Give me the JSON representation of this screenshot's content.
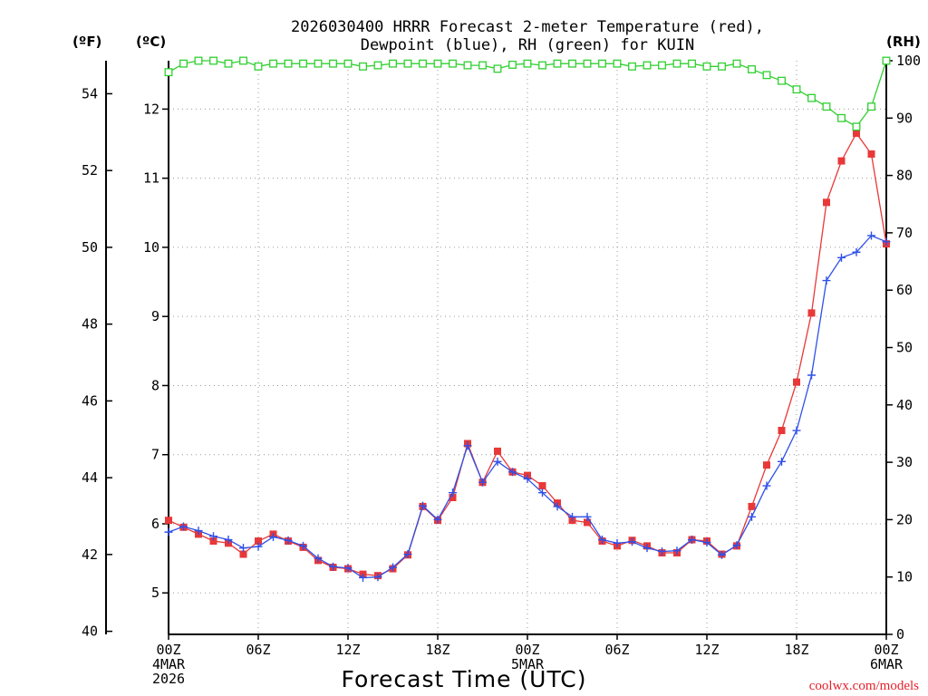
{
  "chart_data": {
    "type": "line",
    "title": [
      "2026030400 HRRR Forecast 2-meter Temperature (red),",
      "Dewpoint (blue), RH (green) for KUIN"
    ],
    "xlabel": "Forecast Time (UTC)",
    "credit": "coolwx.com/models",
    "units": {
      "fahrenheit": "(ºF)",
      "celsius": "(ºC)",
      "rh": "(RH)"
    },
    "x_hours": [
      0,
      1,
      2,
      3,
      4,
      5,
      6,
      7,
      8,
      9,
      10,
      11,
      12,
      13,
      14,
      15,
      16,
      17,
      18,
      19,
      20,
      21,
      22,
      23,
      24,
      25,
      26,
      27,
      28,
      29,
      30,
      31,
      32,
      33,
      34,
      35,
      36,
      37,
      38,
      39,
      40,
      41,
      42,
      43,
      44,
      45,
      46,
      47,
      48
    ],
    "x_ticks": [
      {
        "hour": 0,
        "lines": [
          "00Z",
          "4MAR",
          "2026"
        ]
      },
      {
        "hour": 6,
        "lines": [
          "06Z"
        ]
      },
      {
        "hour": 12,
        "lines": [
          "12Z"
        ]
      },
      {
        "hour": 18,
        "lines": [
          "18Z"
        ]
      },
      {
        "hour": 24,
        "lines": [
          "00Z",
          "5MAR"
        ]
      },
      {
        "hour": 30,
        "lines": [
          "06Z"
        ]
      },
      {
        "hour": 36,
        "lines": [
          "12Z"
        ]
      },
      {
        "hour": 42,
        "lines": [
          "18Z"
        ]
      },
      {
        "hour": 48,
        "lines": [
          "00Z",
          "6MAR"
        ]
      }
    ],
    "xlim": [
      0,
      48
    ],
    "celsius_ticks": [
      5,
      6,
      7,
      8,
      9,
      10,
      11,
      12
    ],
    "fahrenheit_ticks": [
      40,
      42,
      44,
      46,
      48,
      50,
      52,
      54
    ],
    "rh_ticks": [
      0,
      10,
      20,
      30,
      40,
      50,
      60,
      70,
      80,
      90,
      100
    ],
    "ylim_celsius": [
      4.4,
      12.7
    ],
    "ylim_rh": [
      0,
      100
    ],
    "grid": true,
    "series": [
      {
        "name": "Temperature",
        "axis": "celsius",
        "color": "#e83838",
        "marker": "filled-square",
        "values": [
          6.05,
          5.95,
          5.85,
          5.75,
          5.72,
          5.56,
          5.75,
          5.85,
          5.75,
          5.66,
          5.47,
          5.37,
          5.35,
          5.27,
          5.25,
          5.35,
          5.55,
          6.25,
          6.05,
          6.38,
          7.16,
          6.6,
          7.05,
          6.75,
          6.7,
          6.55,
          6.3,
          6.05,
          6.02,
          5.75,
          5.68,
          5.76,
          5.68,
          5.58,
          5.58,
          5.77,
          5.75,
          5.56,
          5.68,
          6.25,
          6.85,
          7.35,
          8.05,
          9.05,
          10.65,
          11.25,
          11.65,
          11.35,
          10.05
        ]
      },
      {
        "name": "Dewpoint",
        "axis": "celsius",
        "color": "#3050e8",
        "marker": "plus",
        "values": [
          5.88,
          5.96,
          5.9,
          5.82,
          5.77,
          5.65,
          5.67,
          5.81,
          5.76,
          5.68,
          5.5,
          5.38,
          5.36,
          5.22,
          5.23,
          5.37,
          5.56,
          6.26,
          6.06,
          6.45,
          7.13,
          6.6,
          6.9,
          6.75,
          6.65,
          6.45,
          6.25,
          6.1,
          6.1,
          5.77,
          5.72,
          5.74,
          5.65,
          5.6,
          5.61,
          5.77,
          5.73,
          5.55,
          5.69,
          6.1,
          6.55,
          6.9,
          7.35,
          8.15,
          9.52,
          9.85,
          9.93,
          10.17,
          10.08
        ]
      },
      {
        "name": "RH",
        "axis": "rh",
        "color": "#30d030",
        "marker": "open-square",
        "values": [
          98,
          99.5,
          100,
          100,
          99.5,
          100,
          99,
          99.5,
          99.5,
          99.5,
          99.5,
          99.5,
          99.5,
          99,
          99.2,
          99.5,
          99.5,
          99.5,
          99.5,
          99.5,
          99.2,
          99.2,
          98.6,
          99.3,
          99.5,
          99.2,
          99.5,
          99.5,
          99.5,
          99.5,
          99.5,
          99,
          99.2,
          99.2,
          99.5,
          99.5,
          99,
          99,
          99.5,
          98.5,
          97.5,
          96.5,
          95,
          93.5,
          92,
          90,
          88.5,
          92,
          100
        ]
      }
    ]
  }
}
